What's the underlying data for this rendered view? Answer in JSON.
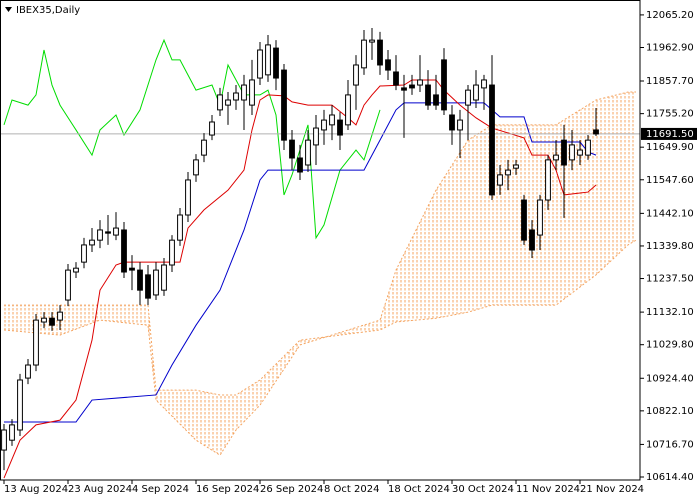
{
  "chart_data": {
    "type": "candlestick",
    "title": "IBEX35,Daily",
    "open": [
      10699,
      10730,
      10762,
      10925,
      10966,
      11101,
      11113,
      11107,
      11170,
      11258,
      11289,
      11343,
      11358,
      11384,
      11374,
      11390,
      11270,
      11264,
      11249,
      11186,
      11201,
      11280,
      11358,
      11437,
      11563,
      11625,
      11688,
      11767,
      11782,
      11798,
      11798,
      11782,
      11867,
      11877,
      11961,
      11892,
      11672,
      11616,
      11594,
      11657,
      11704,
      11720,
      11735,
      11720,
      11845,
      11899,
      11980,
      11986,
      11924,
      11886,
      11836,
      11845,
      11845,
      11845,
      11814,
      11924,
      11751,
      11704,
      11782,
      11798,
      11836,
      11845,
      11531,
      11563,
      11584,
      11484,
      11390,
      11374,
      11484,
      11610,
      11672,
      11610,
      11625,
      11625,
      11704
    ],
    "high": [
      10781,
      10796,
      10938,
      10985,
      11126,
      11132,
      11132,
      11154,
      11283,
      11289,
      11365,
      11396,
      11421,
      11437,
      11446,
      11415,
      11311,
      11289,
      11280,
      11289,
      11302,
      11374,
      11459,
      11572,
      11628,
      11694,
      11751,
      11836,
      11823,
      11845,
      11877,
      11924,
      11980,
      12002,
      11986,
      11911,
      11704,
      11657,
      11704,
      11751,
      11767,
      11782,
      11760,
      11861,
      11939,
      12018,
      12024,
      12012,
      11955,
      11939,
      11877,
      11877,
      11939,
      11892,
      11877,
      11961,
      11782,
      11767,
      11845,
      11892,
      11877,
      11939,
      11594,
      11610,
      11610,
      11500,
      11421,
      11500,
      11625,
      11672,
      11720,
      11704,
      11672,
      11688,
      11773
    ],
    "low": [
      10636,
      10712,
      10743,
      10906,
      10947,
      11082,
      11073,
      11076,
      11151,
      11239,
      11270,
      11321,
      11333,
      11343,
      11358,
      11239,
      11201,
      11154,
      11154,
      11170,
      11183,
      11258,
      11340,
      11415,
      11541,
      11603,
      11672,
      11748,
      11720,
      11767,
      11704,
      11751,
      11845,
      11855,
      11829,
      11641,
      11578,
      11547,
      11572,
      11594,
      11657,
      11672,
      11641,
      11704,
      11767,
      11877,
      11924,
      11877,
      11861,
      11829,
      11679,
      11814,
      11823,
      11767,
      11767,
      11751,
      11657,
      11616,
      11672,
      11773,
      11767,
      11484,
      11500,
      11515,
      11563,
      11343,
      11302,
      11327,
      11453,
      11578,
      11428,
      11578,
      11594,
      11610,
      11685
    ],
    "close": [
      10762,
      10778,
      10919,
      10966,
      11107,
      11113,
      11091,
      11132,
      11264,
      11270,
      11343,
      11358,
      11390,
      11380,
      11396,
      11258,
      11264,
      11201,
      11176,
      11264,
      11280,
      11358,
      11437,
      11547,
      11610,
      11672,
      11729,
      11814,
      11798,
      11820,
      11845,
      11861,
      11955,
      11971,
      11867,
      11672,
      11616,
      11572,
      11672,
      11710,
      11735,
      11751,
      11688,
      11814,
      11908,
      11986,
      11986,
      11908,
      11892,
      11845,
      11829,
      11836,
      11861,
      11782,
      11782,
      11767,
      11704,
      11735,
      11829,
      11845,
      11861,
      11500,
      11563,
      11578,
      11594,
      11358,
      11327,
      11484,
      11610,
      11625,
      11594,
      11657,
      11641,
      11672,
      11691.5
    ],
    "up_color": "#ffffff",
    "down_color": "#000000",
    "wick_color": "#000000",
    "overlays": [
      {
        "type": "cloud",
        "color": "#f4a460",
        "x": [
          0,
          7,
          12,
          18,
          19,
          24,
          27,
          29,
          32,
          37,
          47,
          49,
          54,
          58,
          61,
          69,
          74,
          78,
          79
        ],
        "span_a": [
          11076,
          11060,
          11107,
          11091,
          10856,
          10730,
          10683,
          10762,
          10840,
          11029,
          11107,
          11264,
          11515,
          11672,
          11720,
          11720,
          11798,
          11823,
          11823
        ],
        "span_b": [
          11154,
          11154,
          11154,
          11154,
          10887,
          10887,
          10872,
          10872,
          10919,
          11044,
          11076,
          11101,
          11113,
          11132,
          11154,
          11154,
          11249,
          11343,
          11358
        ]
      },
      {
        "type": "line",
        "color": "#00dd00",
        "x": [
          0,
          1,
          3,
          4,
          5,
          6,
          7,
          9,
          11,
          12,
          14,
          15,
          17,
          19,
          20,
          21,
          22,
          24,
          26,
          27,
          28,
          30,
          32,
          33,
          34,
          35,
          36,
          38,
          39,
          40,
          42,
          44,
          45,
          47
        ],
        "values": [
          11720,
          11798,
          11782,
          11814,
          11955,
          11845,
          11782,
          11704,
          11625,
          11704,
          11751,
          11688,
          11767,
          11924,
          11986,
          11924,
          11924,
          11829,
          11845,
          11782,
          11908,
          11814,
          11814,
          11829,
          11751,
          11500,
          11563,
          11720,
          11365,
          11406,
          11578,
          11641,
          11610,
          11767
        ]
      },
      {
        "type": "line",
        "color": "#0000cc",
        "x": [
          0,
          9,
          11,
          19,
          21,
          24,
          27,
          30,
          32,
          33,
          45,
          47,
          49,
          50,
          60,
          61,
          62,
          65,
          66,
          72,
          73,
          74
        ],
        "values": [
          10787,
          10787,
          10856,
          10872,
          10966,
          11091,
          11201,
          11390,
          11547,
          11578,
          11578,
          11672,
          11767,
          11789,
          11789,
          11767,
          11745,
          11745,
          11666,
          11666,
          11635,
          11625
        ]
      },
      {
        "type": "line",
        "color": "#dd0000",
        "x": [
          0,
          2,
          4,
          7,
          9,
          11,
          12,
          14,
          15,
          22,
          23,
          25,
          28,
          30,
          31,
          32,
          33,
          35,
          36,
          38,
          41,
          43,
          44,
          45,
          46,
          47,
          50,
          51,
          54,
          55,
          57,
          59,
          61,
          65,
          66,
          68,
          69,
          70,
          73,
          74
        ],
        "values": [
          10611,
          10730,
          10778,
          10793,
          10856,
          11044,
          11201,
          11280,
          11289,
          11289,
          11396,
          11453,
          11515,
          11578,
          11704,
          11798,
          11814,
          11811,
          11792,
          11782,
          11782,
          11742,
          11720,
          11782,
          11814,
          11842,
          11845,
          11861,
          11861,
          11829,
          11782,
          11742,
          11710,
          11679,
          11625,
          11625,
          11578,
          11500,
          11509,
          11531
        ]
      }
    ],
    "last_price": {
      "value": 11691.5,
      "label": "11691.50"
    },
    "xlim": [
      -0.5,
      79.5
    ],
    "ylim": [
      10605,
      12112
    ],
    "xticks": [
      {
        "value": 0,
        "label": "13 Aug 2024"
      },
      {
        "value": 8,
        "label": "23 Aug 2024"
      },
      {
        "value": 16,
        "label": "4 Sep 2024"
      },
      {
        "value": 24,
        "label": "16 Sep 2024"
      },
      {
        "value": 32,
        "label": "26 Sep 2024"
      },
      {
        "value": 40,
        "label": "8 Oct 2024"
      },
      {
        "value": 48,
        "label": "18 Oct 2024"
      },
      {
        "value": 56,
        "label": "30 Oct 2024"
      },
      {
        "value": 64,
        "label": "11 Nov 2024"
      },
      {
        "value": 72,
        "label": "21 Nov 2024"
      }
    ],
    "yticks": [
      {
        "value": 12065.2,
        "label": "12065.20"
      },
      {
        "value": 11962.9,
        "label": "11962.90"
      },
      {
        "value": 11857.7,
        "label": "11857.70"
      },
      {
        "value": 11755.2,
        "label": "11755.20"
      },
      {
        "value": 11649.9,
        "label": "11649.90"
      },
      {
        "value": 11547.6,
        "label": "11547.60"
      },
      {
        "value": 11442.1,
        "label": "11442.10"
      },
      {
        "value": 11339.8,
        "label": "11339.80"
      },
      {
        "value": 11237.5,
        "label": "11237.50"
      },
      {
        "value": 11132.1,
        "label": "11132.10"
      },
      {
        "value": 11029.8,
        "label": "11029.80"
      },
      {
        "value": 10924.4,
        "label": "10924.40"
      },
      {
        "value": 10822.1,
        "label": "10822.10"
      },
      {
        "value": 10716.7,
        "label": "10716.70"
      },
      {
        "value": 10614.4,
        "label": "10614.40"
      }
    ],
    "grid": false
  }
}
